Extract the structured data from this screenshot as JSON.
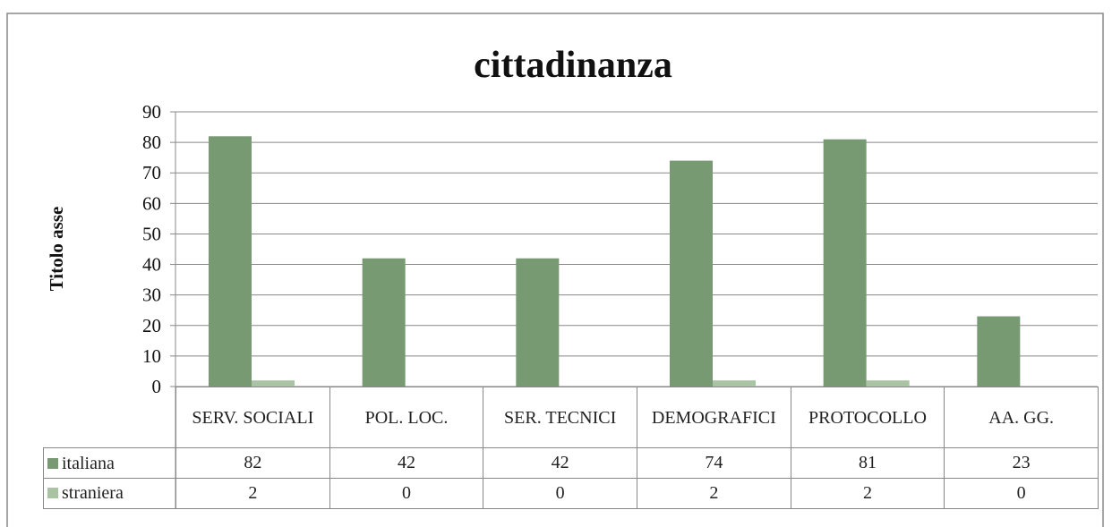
{
  "chart_data": {
    "type": "bar",
    "title": "cittadinanza",
    "y_axis_label": "Titolo asse",
    "categories": [
      "SERV. SOCIALI",
      "POL. LOC.",
      "SER. TECNICI",
      "DEMOGRAFICI",
      "PROTOCOLLO",
      "AA. GG."
    ],
    "series": [
      {
        "name": "italiana",
        "color": "#779a72",
        "values": [
          82,
          42,
          42,
          74,
          81,
          23
        ]
      },
      {
        "name": "straniera",
        "color": "#a9c4a3",
        "values": [
          2,
          0,
          0,
          2,
          2,
          0
        ]
      }
    ],
    "ylim": [
      0,
      90
    ],
    "yticks": [
      0,
      10,
      20,
      30,
      40,
      50,
      60,
      70,
      80,
      90
    ],
    "grid": true,
    "data_table": true
  }
}
